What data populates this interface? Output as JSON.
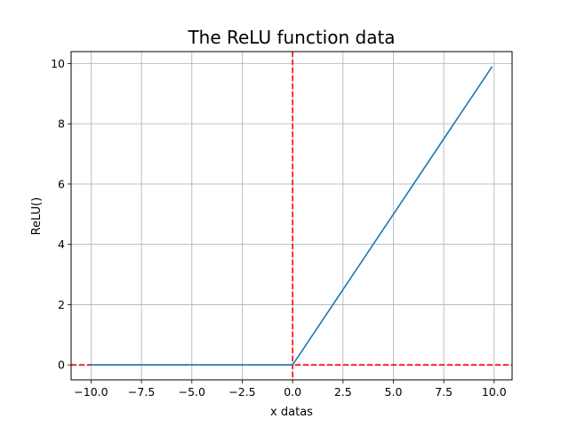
{
  "chart_data": {
    "type": "line",
    "title": "The ReLU function data",
    "xlabel": "x datas",
    "ylabel": "ReLU()",
    "xlim": [
      -10.99,
      10.89
    ],
    "ylim": [
      -0.495,
      10.395
    ],
    "grid": true,
    "xticks": [
      -10.0,
      -7.5,
      -5.0,
      -2.5,
      0.0,
      2.5,
      5.0,
      7.5,
      10.0
    ],
    "xtick_labels": [
      "−10.0",
      "−7.5",
      "−5.0",
      "−2.5",
      "0.0",
      "2.5",
      "5.0",
      "7.5",
      "10.0"
    ],
    "yticks": [
      0,
      2,
      4,
      6,
      8,
      10
    ],
    "ytick_labels": [
      "0",
      "2",
      "4",
      "6",
      "8",
      "10"
    ],
    "series": [
      {
        "color": "#1f77b4",
        "x": [
          -10.0,
          0.0,
          9.9
        ],
        "y": [
          0.0,
          0.0,
          9.9
        ]
      }
    ],
    "reference_lines": [
      {
        "orientation": "vertical",
        "value": 0,
        "color": "#ff0000",
        "style": "dashed"
      },
      {
        "orientation": "horizontal",
        "value": 0,
        "color": "#ff0000",
        "style": "dashed"
      }
    ]
  }
}
